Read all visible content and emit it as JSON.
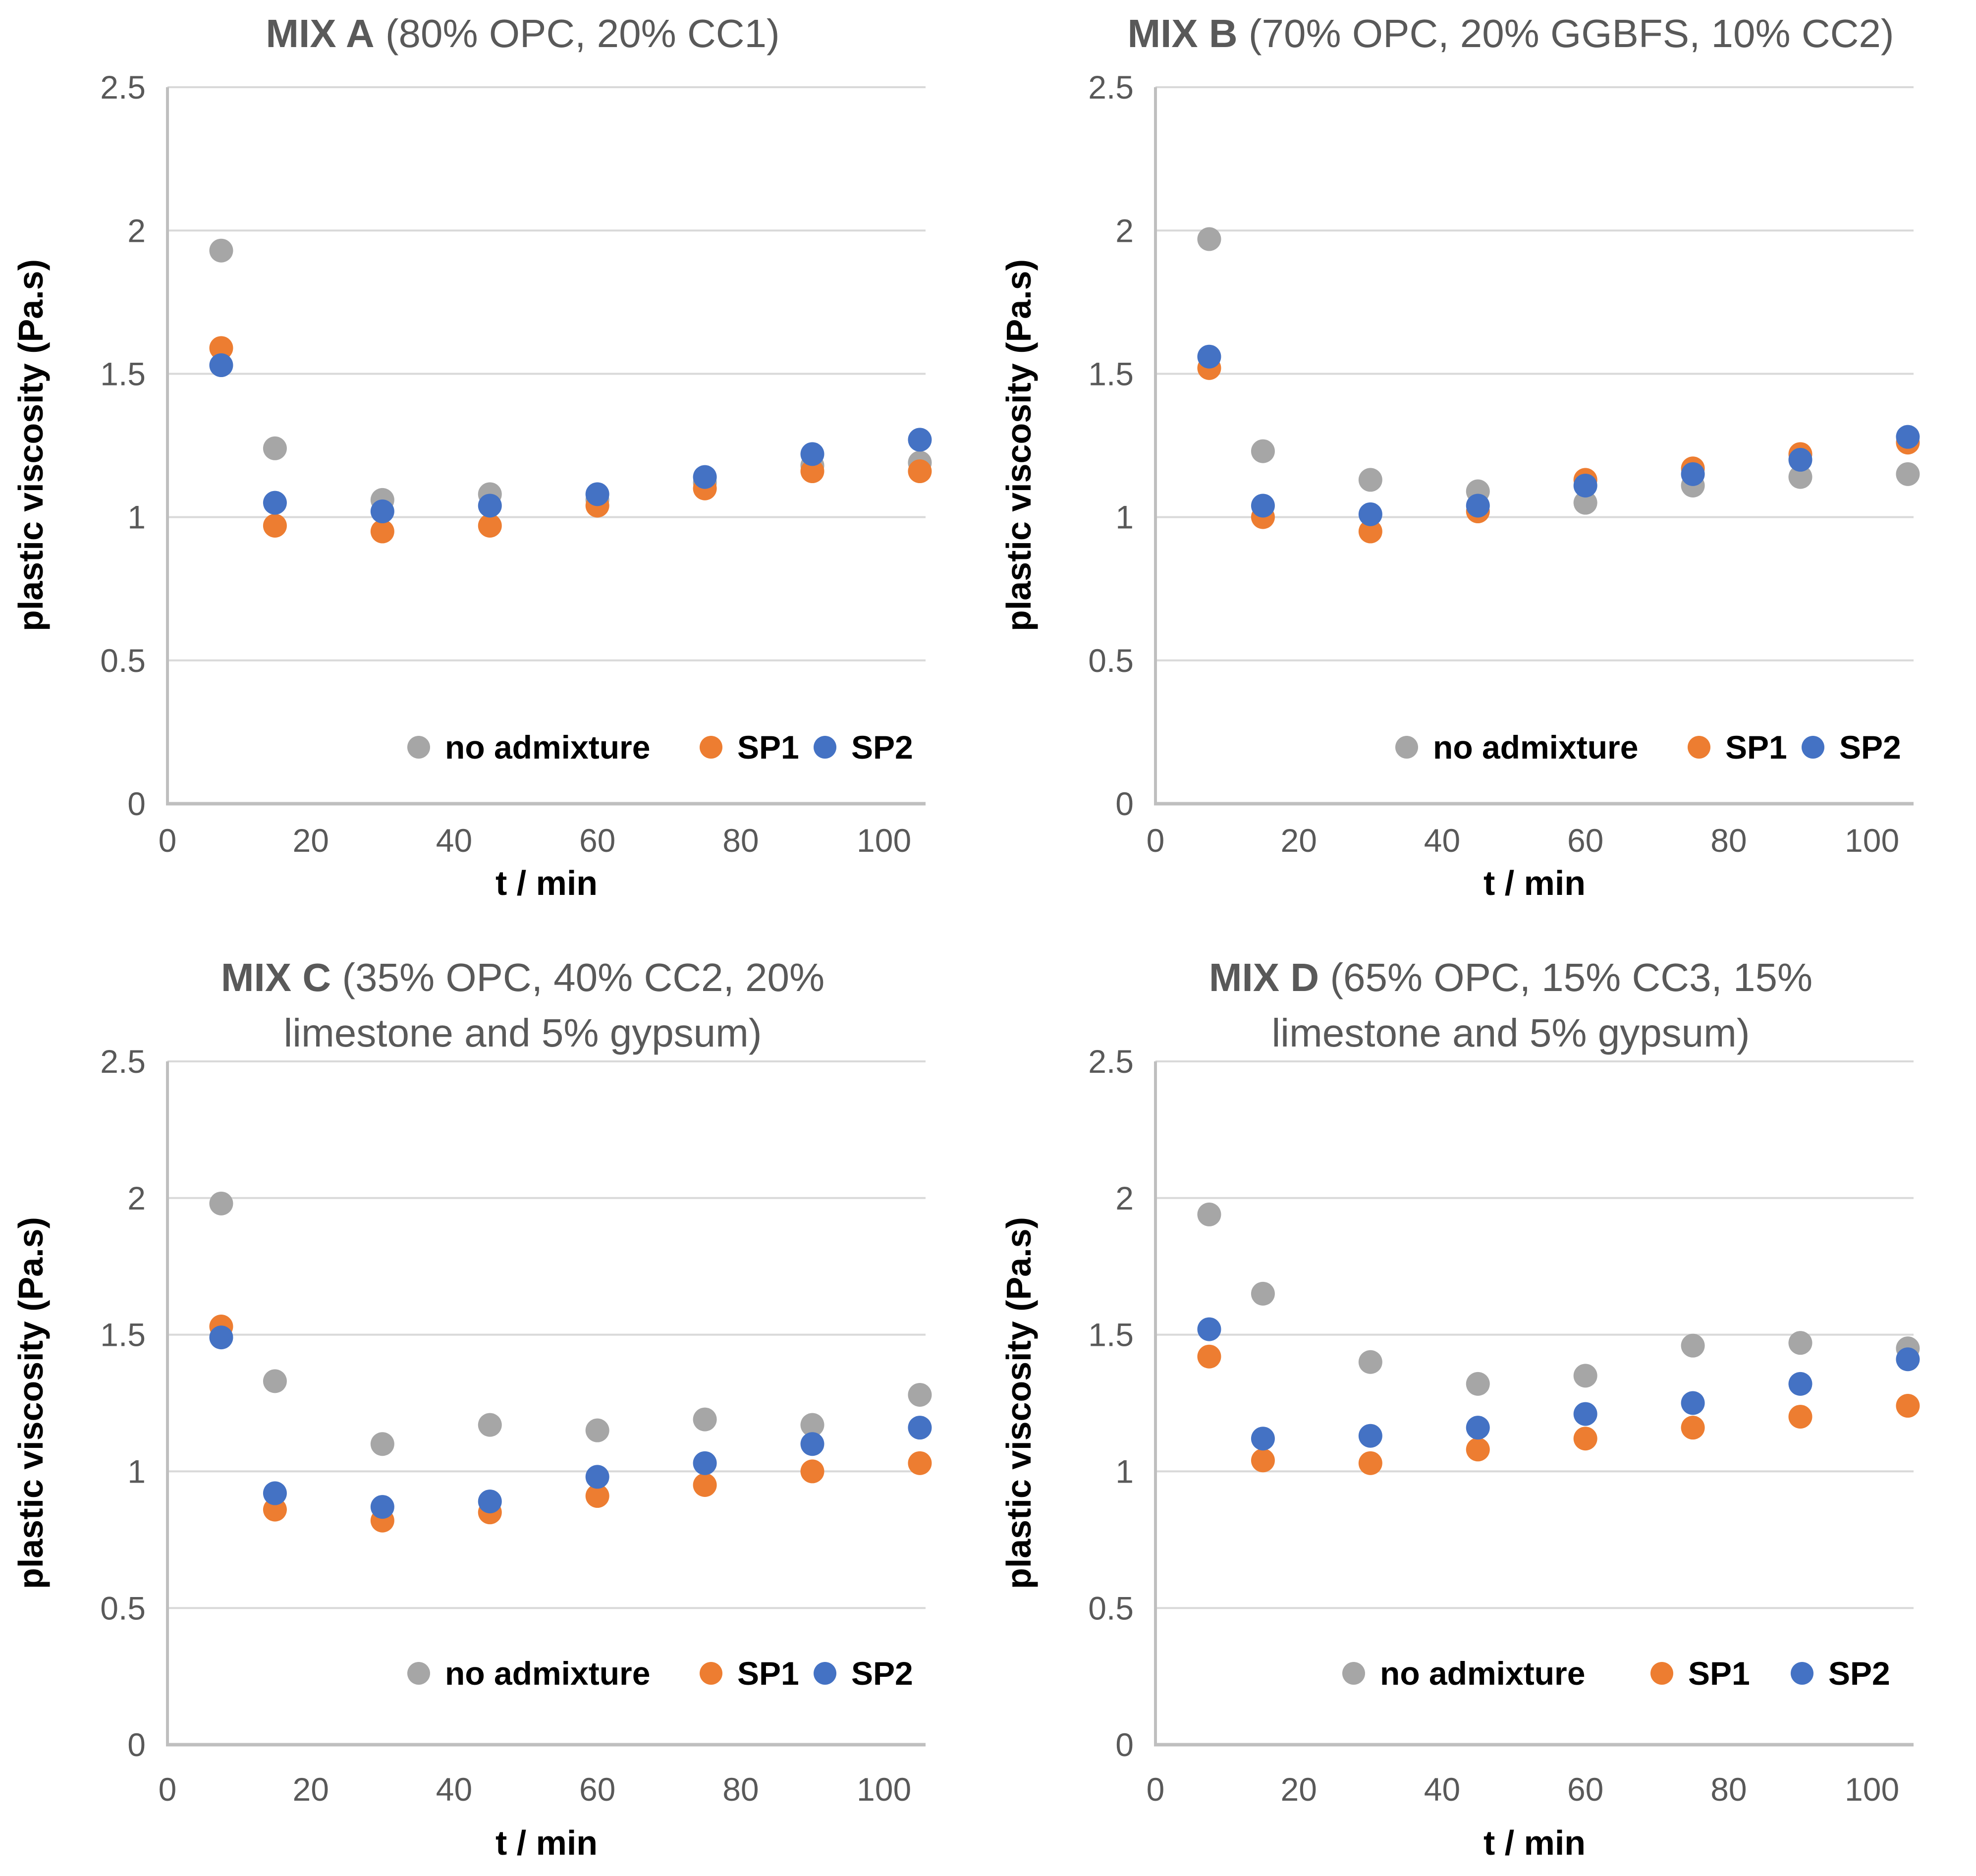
{
  "figure": {
    "colors": {
      "no_admixture": "#A6A6A6",
      "sp1": "#ED7D31",
      "sp2": "#4472C4",
      "title_text": "#595959",
      "tick_text": "#595959",
      "gridline": "#D9D9D9",
      "axis_line": "#BFBFBF"
    },
    "legend_labels": [
      "no admixture",
      "SP1",
      "SP2"
    ]
  },
  "chart_data": [
    {
      "type": "scatter",
      "title_bold": "MIX A",
      "title_tail": " (80% OPC, 20% CC1)",
      "xlabel": "t / min",
      "ylabel": "plastic viscosity (Pa.s)",
      "x_tick_labels": [
        "0",
        "20",
        "40",
        "60",
        "80",
        "100"
      ],
      "x_tick_values": [
        0,
        20,
        40,
        60,
        80,
        100
      ],
      "y_tick_labels": [
        "0",
        "0.5",
        "1",
        "1.5",
        "2",
        "2.5"
      ],
      "y_tick_values": [
        0,
        0.5,
        1,
        1.5,
        2,
        2.5
      ],
      "xlim": [
        0,
        105.8
      ],
      "ylim": [
        0,
        2.5
      ],
      "grid": "horizontal-only",
      "legend_position": "inside-bottom",
      "x": [
        7.5,
        15,
        30,
        45,
        60,
        75,
        90,
        105
      ],
      "series": [
        {
          "name": "no admixture",
          "color": "#A6A6A6",
          "values": [
            1.93,
            1.24,
            1.06,
            1.08,
            1.06,
            1.12,
            1.18,
            1.19
          ]
        },
        {
          "name": "SP1",
          "color": "#ED7D31",
          "values": [
            1.59,
            0.97,
            0.95,
            0.97,
            1.04,
            1.1,
            1.16,
            1.16
          ]
        },
        {
          "name": "SP2",
          "color": "#4472C4",
          "values": [
            1.53,
            1.05,
            1.02,
            1.04,
            1.08,
            1.14,
            1.22,
            1.27
          ]
        }
      ]
    },
    {
      "type": "scatter",
      "title_bold": "MIX B",
      "title_tail": " (70% OPC, 20% GGBFS, 10% CC2)",
      "xlabel": "t / min",
      "ylabel": "plastic viscosity (Pa.s)",
      "x_tick_labels": [
        "0",
        "20",
        "40",
        "60",
        "80",
        "100"
      ],
      "x_tick_values": [
        0,
        20,
        40,
        60,
        80,
        100
      ],
      "y_tick_labels": [
        "0",
        "0.5",
        "1",
        "1.5",
        "2",
        "2.5"
      ],
      "y_tick_values": [
        0,
        0.5,
        1,
        1.5,
        2,
        2.5
      ],
      "xlim": [
        0,
        105.8
      ],
      "ylim": [
        0,
        2.5
      ],
      "grid": "horizontal-only",
      "legend_position": "inside-bottom",
      "x": [
        7.5,
        15,
        30,
        45,
        60,
        75,
        90,
        105
      ],
      "series": [
        {
          "name": "no admixture",
          "color": "#A6A6A6",
          "values": [
            1.97,
            1.23,
            1.13,
            1.09,
            1.05,
            1.11,
            1.14,
            1.15
          ]
        },
        {
          "name": "SP1",
          "color": "#ED7D31",
          "values": [
            1.52,
            1.0,
            0.95,
            1.02,
            1.13,
            1.17,
            1.22,
            1.26
          ]
        },
        {
          "name": "SP2",
          "color": "#4472C4",
          "values": [
            1.56,
            1.04,
            1.01,
            1.04,
            1.11,
            1.15,
            1.2,
            1.28
          ]
        }
      ]
    },
    {
      "type": "scatter",
      "title_bold": "MIX C",
      "title_tail": " (35% OPC, 40% CC2, 20%\nlimestone and 5% gypsum)",
      "xlabel": "t / min",
      "ylabel": "plastic viscosity (Pa.s)",
      "x_tick_labels": [
        "0",
        "20",
        "40",
        "60",
        "80",
        "100"
      ],
      "x_tick_values": [
        0,
        20,
        40,
        60,
        80,
        100
      ],
      "y_tick_labels": [
        "0",
        "0.5",
        "1",
        "1.5",
        "2",
        "2.5"
      ],
      "y_tick_values": [
        0,
        0.5,
        1,
        1.5,
        2,
        2.5
      ],
      "xlim": [
        0,
        105.8
      ],
      "ylim": [
        0,
        2.5
      ],
      "grid": "horizontal-only",
      "legend_position": "inside-bottom",
      "x": [
        7.5,
        15,
        30,
        45,
        60,
        75,
        90,
        105
      ],
      "series": [
        {
          "name": "no admixture",
          "color": "#A6A6A6",
          "values": [
            1.98,
            1.33,
            1.1,
            1.17,
            1.15,
            1.19,
            1.17,
            1.28
          ]
        },
        {
          "name": "SP1",
          "color": "#ED7D31",
          "values": [
            1.53,
            0.86,
            0.82,
            0.85,
            0.91,
            0.95,
            1.0,
            1.03
          ]
        },
        {
          "name": "SP2",
          "color": "#4472C4",
          "values": [
            1.49,
            0.92,
            0.87,
            0.89,
            0.98,
            1.03,
            1.1,
            1.16
          ]
        }
      ]
    },
    {
      "type": "scatter",
      "title_bold": "MIX D",
      "title_tail": " (65% OPC, 15% CC3, 15%\nlimestone and 5% gypsum)",
      "xlabel": "t / min",
      "ylabel": "plastic viscosity (Pa.s)",
      "x_tick_labels": [
        "0",
        "20",
        "40",
        "60",
        "80",
        "100"
      ],
      "x_tick_values": [
        0,
        20,
        40,
        60,
        80,
        100
      ],
      "y_tick_labels": [
        "0",
        "0.5",
        "1",
        "1.5",
        "2",
        "2.5"
      ],
      "y_tick_values": [
        0,
        0.5,
        1,
        1.5,
        2,
        2.5
      ],
      "xlim": [
        0,
        105.8
      ],
      "ylim": [
        0,
        2.5
      ],
      "grid": "horizontal-only",
      "legend_position": "inside-bottom",
      "x": [
        7.5,
        15,
        30,
        45,
        60,
        75,
        90,
        105
      ],
      "series": [
        {
          "name": "no admixture",
          "color": "#A6A6A6",
          "values": [
            1.94,
            1.65,
            1.4,
            1.32,
            1.35,
            1.46,
            1.47,
            1.45
          ]
        },
        {
          "name": "SP1",
          "color": "#ED7D31",
          "values": [
            1.42,
            1.04,
            1.03,
            1.08,
            1.12,
            1.16,
            1.2,
            1.24
          ]
        },
        {
          "name": "SP2",
          "color": "#4472C4",
          "values": [
            1.52,
            1.12,
            1.13,
            1.16,
            1.21,
            1.25,
            1.32,
            1.41
          ]
        }
      ]
    }
  ]
}
